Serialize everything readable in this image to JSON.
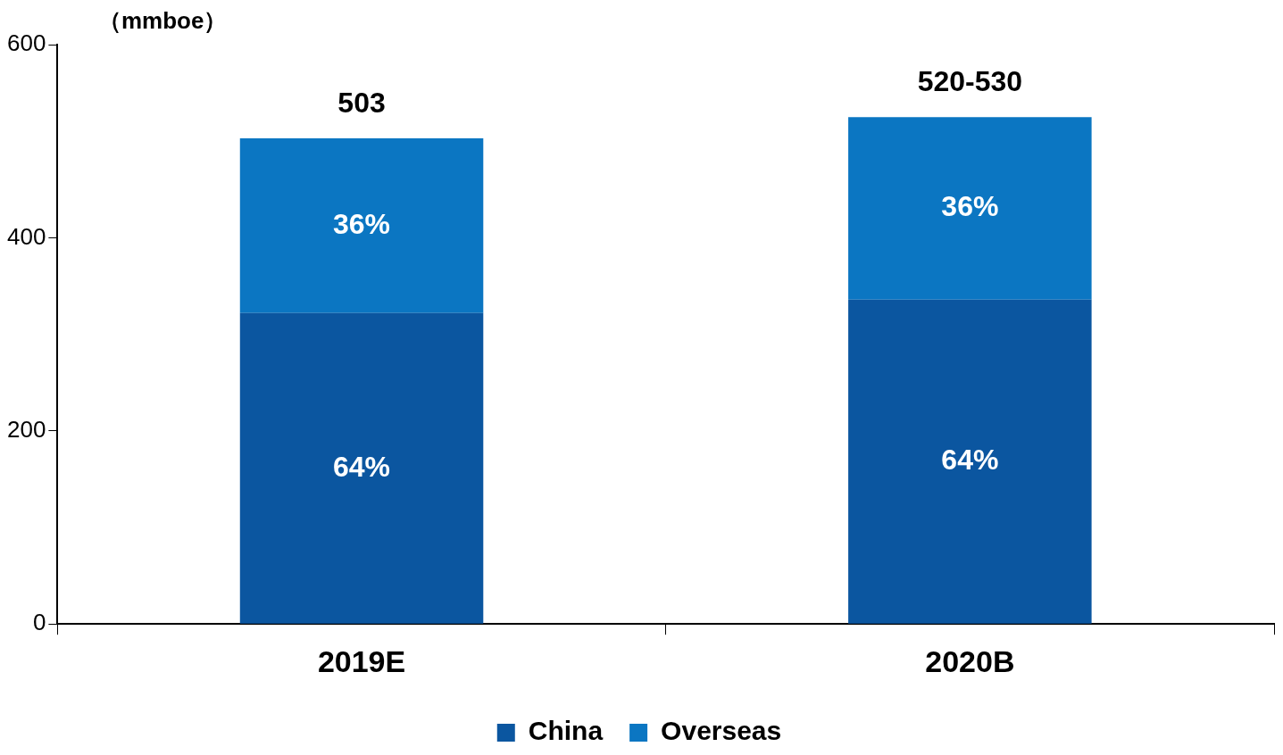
{
  "chart_data": {
    "type": "bar",
    "ylabel": "（mmboe）",
    "categories": [
      "2019E",
      "2020B"
    ],
    "stacked": true,
    "series": [
      {
        "name": "China",
        "color": "#0b56a0",
        "values": [
          322,
          336
        ]
      },
      {
        "name": "Overseas",
        "color": "#0b76c2",
        "values": [
          181,
          189
        ]
      }
    ],
    "annotations": [
      "64%",
      "64%",
      "36%",
      "36%"
    ],
    "totals": [
      "503",
      "520-530"
    ],
    "ylim": [
      0,
      600
    ],
    "yticks": [
      0,
      200,
      400,
      600
    ],
    "legend": "bottom"
  }
}
